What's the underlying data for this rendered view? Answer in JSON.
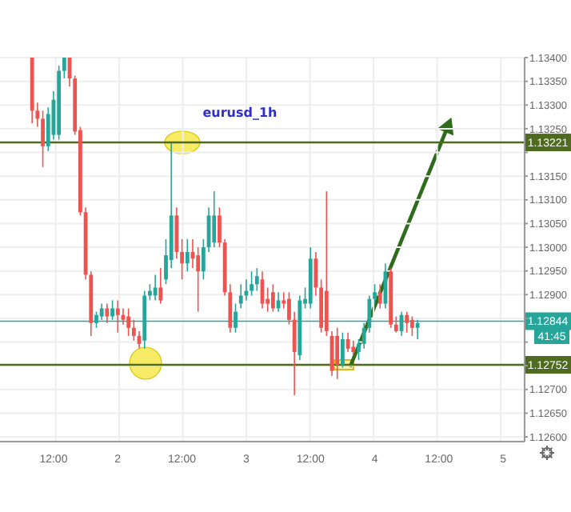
{
  "chart_data": {
    "type": "candlestick",
    "title": "eurusd_1h",
    "categories": [
      null,
      null,
      null,
      null,
      null,
      null,
      null,
      null,
      null,
      null,
      "12:00",
      null,
      null,
      null,
      null,
      null,
      null,
      null,
      null,
      null,
      null,
      null,
      "2",
      null,
      null,
      null,
      null,
      null,
      null,
      null,
      null,
      null,
      null,
      null,
      "12:00",
      null,
      null,
      null,
      null,
      null,
      null,
      null,
      null,
      null,
      null,
      null,
      "3",
      null,
      null,
      null,
      null,
      null,
      null,
      null,
      null,
      null,
      null,
      null,
      "12:00",
      null,
      null,
      null,
      null,
      null,
      null,
      null,
      null,
      null,
      null,
      null,
      "4",
      null,
      null,
      null,
      null,
      null,
      null,
      null,
      null,
      null,
      null,
      null,
      "12:00",
      null,
      null,
      null,
      null,
      null,
      null,
      null,
      null,
      null,
      null,
      null,
      "5",
      null,
      null,
      null,
      null
    ],
    "ohlc": [
      null,
      null,
      null,
      null,
      null,
      null,
      [
        1.134,
        1.134,
        1.13261,
        1.13288
      ],
      [
        1.13288,
        1.13305,
        1.13254,
        1.13271
      ],
      [
        1.13271,
        1.13288,
        1.13169,
        1.13213
      ],
      [
        1.13213,
        1.13295,
        1.13203,
        1.13281
      ],
      [
        1.13237,
        1.13329,
        1.13227,
        1.13311
      ],
      [
        1.13237,
        1.13383,
        1.13227,
        1.13372
      ],
      [
        1.13372,
        1.134,
        1.13356,
        1.134
      ],
      [
        1.134,
        1.134,
        1.13339,
        1.13356
      ],
      [
        1.13356,
        1.13362,
        1.13237,
        1.13244
      ],
      [
        1.13247,
        1.13254,
        1.13067,
        1.13074
      ],
      [
        1.13074,
        1.13084,
        1.12932,
        1.12942
      ],
      [
        1.12942,
        1.12949,
        1.12813,
        1.1284
      ],
      [
        1.1284,
        1.12864,
        1.1283,
        1.12857
      ],
      [
        1.12854,
        1.12881,
        1.12847,
        1.12871
      ],
      [
        1.12871,
        1.12881,
        1.1284,
        1.12854
      ],
      [
        1.12854,
        1.12888,
        1.12847,
        1.12871
      ],
      [
        1.12871,
        1.12888,
        1.1282,
        1.12857
      ],
      [
        1.12857,
        1.12871,
        1.12837,
        1.12847
      ],
      [
        1.12854,
        1.12871,
        1.12813,
        1.1283
      ],
      [
        1.1283,
        1.12847,
        1.12803,
        1.12813
      ],
      [
        1.12813,
        1.12823,
        1.12786,
        1.12796
      ],
      [
        1.12803,
        1.12908,
        1.12786,
        1.12898
      ],
      [
        1.12898,
        1.12922,
        1.12888,
        1.12908
      ],
      [
        1.12898,
        1.12942,
        1.12888,
        1.12915
      ],
      [
        1.12915,
        1.12956,
        1.12881,
        1.12888
      ],
      [
        1.12932,
        1.13017,
        1.12922,
        1.12983
      ],
      [
        1.12973,
        1.1322,
        1.12956,
        1.13067
      ],
      [
        1.13067,
        1.13084,
        1.12976,
        1.1299
      ],
      [
        1.1299,
        1.13017,
        1.12932,
        1.12966
      ],
      [
        1.12966,
        1.13017,
        1.12949,
        1.1299
      ],
      [
        1.1299,
        1.13017,
        1.12956,
        1.12976
      ],
      [
        1.12983,
        1.13,
        1.12864,
        1.12949
      ],
      [
        1.12949,
        1.13017,
        1.12932,
        1.13
      ],
      [
        1.13,
        1.13084,
        1.1299,
        1.13067
      ],
      [
        1.1301,
        1.13118,
        1.13,
        1.13067
      ],
      [
        1.13067,
        1.13084,
        1.13,
        1.1301
      ],
      [
        1.1301,
        1.13017,
        1.12898,
        1.12905
      ],
      [
        1.12905,
        1.12922,
        1.1282,
        1.1283
      ],
      [
        1.1283,
        1.12881,
        1.1282,
        1.12864
      ],
      [
        1.12881,
        1.12922,
        1.12871,
        1.12898
      ],
      [
        1.12898,
        1.12932,
        1.12888,
        1.12908
      ],
      [
        1.12908,
        1.12949,
        1.12898,
        1.12922
      ],
      [
        1.12922,
        1.12956,
        1.12908,
        1.12939
      ],
      [
        1.12932,
        1.12949,
        1.12871,
        1.12881
      ],
      [
        1.12891,
        1.12915,
        1.12864,
        1.12881
      ],
      [
        1.12905,
        1.12922,
        1.12864,
        1.12871
      ],
      [
        1.12871,
        1.12905,
        1.12864,
        1.12888
      ],
      [
        1.12888,
        1.12905,
        1.12871,
        1.12881
      ],
      [
        1.12891,
        1.12905,
        1.12837,
        1.12847
      ],
      [
        1.12847,
        1.12864,
        1.12688,
        1.12779
      ],
      [
        1.12772,
        1.12898,
        1.12762,
        1.12888
      ],
      [
        1.12881,
        1.12915,
        1.12871,
        1.12891
      ],
      [
        1.12881,
        1.13,
        1.12871,
        1.12976
      ],
      [
        1.12976,
        1.1299,
        1.12898,
        1.12915
      ],
      [
        1.12915,
        1.12932,
        1.1282,
        1.1283
      ],
      [
        1.12908,
        1.13118,
        1.12813,
        1.12823
      ],
      [
        1.12813,
        1.12823,
        1.12729,
        1.12739
      ],
      [
        1.12813,
        1.1283,
        1.12722,
        1.12752
      ],
      [
        1.12752,
        1.1282,
        1.12746,
        1.12806
      ],
      [
        1.12806,
        1.1282,
        1.12779,
        1.12786
      ],
      [
        1.1279,
        1.12803,
        1.12772,
        1.12779
      ],
      [
        1.12779,
        1.12806,
        1.12762,
        1.12796
      ],
      [
        1.12796,
        1.1284,
        1.12786,
        1.1283
      ],
      [
        1.1283,
        1.12898,
        1.1282,
        1.12891
      ],
      [
        1.12891,
        1.12922,
        1.12881,
        1.12905
      ],
      [
        1.12905,
        1.12922,
        1.12871,
        1.12881
      ],
      [
        1.12881,
        1.12966,
        1.12871,
        1.12949
      ],
      [
        1.12949,
        1.12956,
        1.1283,
        1.12837
      ],
      [
        1.12837,
        1.12854,
        1.1282,
        1.12823
      ],
      [
        1.12823,
        1.12864,
        1.12813,
        1.12857
      ],
      [
        1.12857,
        1.12864,
        1.1282,
        1.1284
      ],
      [
        1.12847,
        1.12854,
        1.12813,
        1.1283
      ],
      [
        1.1283,
        1.12847,
        1.12806,
        1.1284
      ],
      null,
      null,
      null,
      null,
      null,
      null,
      null,
      null,
      null,
      null,
      null,
      null,
      null,
      null,
      null,
      null,
      null,
      null,
      null,
      null
    ],
    "colors": [
      null,
      null,
      null,
      null,
      null,
      null,
      "#ef5350",
      "#ef5350",
      "#ef5350",
      "#26a69a",
      "#26a69a",
      "#26a69a",
      "#26a69a",
      "#ef5350",
      "#ef5350",
      "#ef5350",
      "#ef5350",
      "#ef5350",
      "#26a69a",
      "#26a69a",
      "#ef5350",
      "#26a69a",
      "#ef5350",
      "#ef5350",
      "#ef5350",
      "#ef5350",
      "#ef5350",
      "#26a69a",
      "#26a69a",
      "#26a69a",
      "#ef5350",
      "#26a69a",
      "#26a69a",
      "#ef5350",
      "#ef5350",
      "#26a69a",
      "#ef5350",
      "#ef5350",
      "#26a69a",
      "#26a69a",
      "#26a69a",
      "#ef5350",
      "#ef5350",
      "#ef5350",
      "#26a69a",
      "#26a69a",
      "#26a69a",
      "#26a69a",
      "#26a69a",
      "#ef5350",
      "#ef5350",
      "#ef5350",
      "#26a69a",
      "#ef5350",
      "#ef5350",
      "#ef5350",
      "#26a69a",
      "#26a69a",
      "#26a69a",
      "#ef5350",
      "#ef5350",
      "#ef5350",
      "#ef5350",
      "#ef5350",
      "#26a69a",
      "#ef5350",
      "#ef5350",
      "#26a69a",
      "#26a69a",
      "#26a69a",
      "#26a69a",
      "#ef5350",
      "#26a69a",
      "#ef5350",
      "#ef5350",
      "#26a69a",
      "#ef5350",
      "#ef5350",
      "#26a69a",
      null,
      null,
      null,
      null,
      null,
      null,
      null,
      null,
      null,
      null,
      null,
      null,
      null,
      null,
      null,
      null,
      null,
      null,
      null,
      null
    ],
    "ylim": [
      1.1259,
      1.134
    ],
    "yticks": [
      {
        "value": 1.126,
        "label": "1.12600"
      },
      {
        "value": 1.1265,
        "label": "1.12650"
      },
      {
        "value": 1.127,
        "label": "1.12700"
      },
      {
        "value": 1.1275,
        "label": null
      },
      {
        "value": 1.128,
        "label": null
      },
      {
        "value": 1.1285,
        "label": null
      },
      {
        "value": 1.129,
        "label": "1.12900"
      },
      {
        "value": 1.1295,
        "label": "1.12950"
      },
      {
        "value": 1.13,
        "label": "1.13000"
      },
      {
        "value": 1.1305,
        "label": "1.13050"
      },
      {
        "value": 1.131,
        "label": "1.13100"
      },
      {
        "value": 1.1315,
        "label": "1.13150"
      },
      {
        "value": 1.132,
        "label": null
      },
      {
        "value": 1.1325,
        "label": "1.13250"
      },
      {
        "value": 1.133,
        "label": "1.13300"
      },
      {
        "value": 1.1335,
        "label": "1.13350"
      },
      {
        "value": 1.134,
        "label": "1.13400"
      }
    ],
    "ref_lines": [
      {
        "axis": "y",
        "value": 1.13221,
        "label": "1.13221",
        "color": "#4f6b1f"
      },
      {
        "axis": "y",
        "value": 1.12752,
        "label": "1.12752",
        "color": "#4f6b1f"
      },
      {
        "axis": "y",
        "value": 1.12844,
        "label": "1.12844",
        "color": "#26a69a"
      }
    ],
    "annotations": [
      "41:45"
    ],
    "grid": true
  }
}
